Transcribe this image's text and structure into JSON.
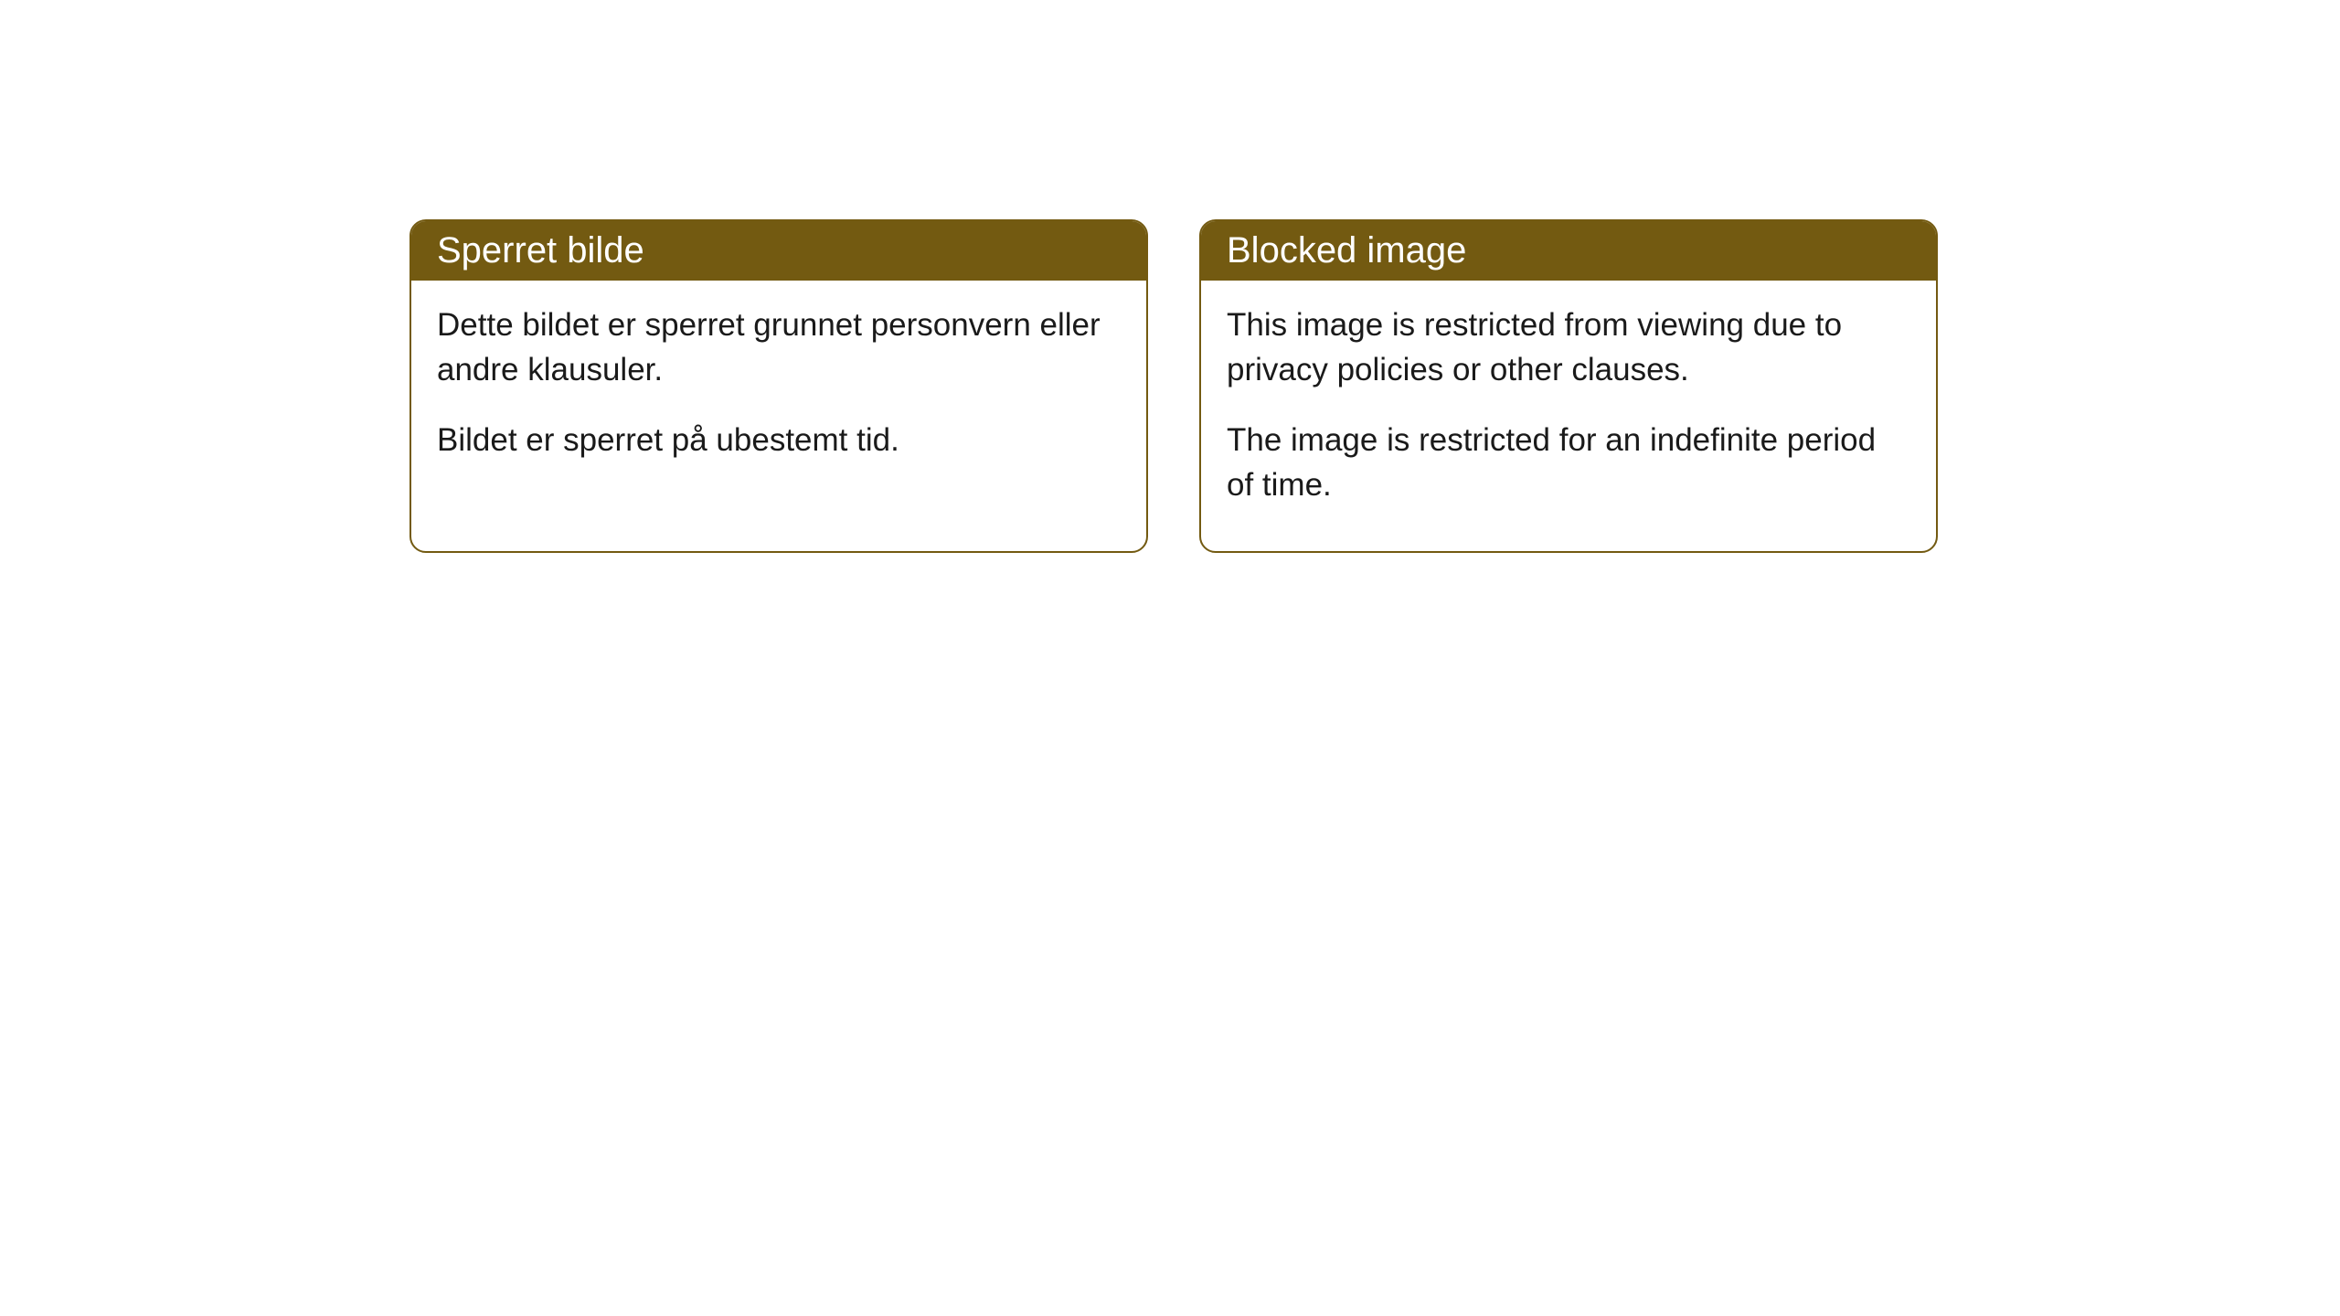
{
  "cards": [
    {
      "title": "Sperret bilde",
      "paragraph1": "Dette bildet er sperret grunnet personvern eller andre klausuler.",
      "paragraph2": "Bildet er sperret på ubestemt tid."
    },
    {
      "title": "Blocked image",
      "paragraph1": "This image is restricted from viewing due to privacy policies or other clauses.",
      "paragraph2": "The image is restricted for an indefinite period of time."
    }
  ],
  "styling": {
    "header_background": "#735a11",
    "header_text_color": "#ffffff",
    "border_color": "#735a11",
    "body_background": "#ffffff",
    "body_text_color": "#1a1a1a",
    "border_radius": 18,
    "title_fontsize": 40,
    "body_fontsize": 35
  }
}
